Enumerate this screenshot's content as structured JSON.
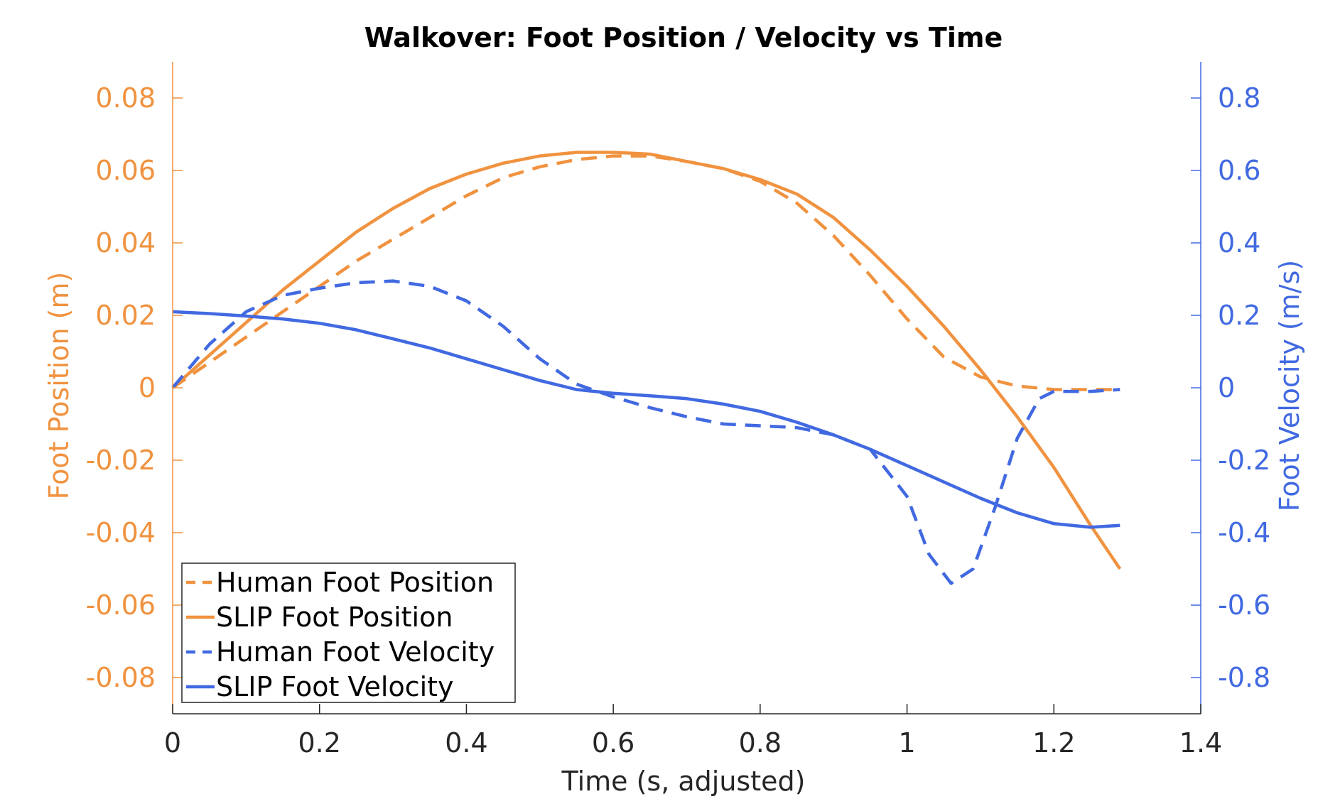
{
  "colors": {
    "position": "#F0923F",
    "velocity": "#4169E1",
    "axis_x": "#262626",
    "legend_border": "#262626",
    "background": "#FFFFFF"
  },
  "chart_data": {
    "type": "line",
    "title": "Walkover: Foot Position / Velocity vs Time",
    "xlabel": "Time (s, adjusted)",
    "ylabel_left": "Foot Position (m)",
    "ylabel_right": "Foot Velocity (m/s)",
    "xlim": [
      0,
      1.4
    ],
    "ylim_left": [
      -0.09,
      0.09
    ],
    "ylim_right": [
      -0.9,
      0.9
    ],
    "x_ticks": [
      0,
      0.2,
      0.4,
      0.6,
      0.8,
      1,
      1.2,
      1.4
    ],
    "x_tick_labels": [
      "0",
      "0.2",
      "0.4",
      "0.6",
      "0.8",
      "1",
      "1.2",
      "1.4"
    ],
    "left_ticks": [
      0.08,
      0.06,
      0.04,
      0.02,
      0,
      -0.02,
      -0.04,
      -0.06,
      -0.08
    ],
    "left_tick_labels": [
      "0.08",
      "0.06",
      "0.04",
      "0.02",
      "0",
      "-0.02",
      "-0.04",
      "-0.06",
      "-0.08"
    ],
    "right_ticks": [
      0.8,
      0.6,
      0.4,
      0.2,
      0,
      -0.2,
      -0.4,
      -0.6,
      -0.8
    ],
    "right_tick_labels": [
      "0.8",
      "0.6",
      "0.4",
      "0.2",
      "0",
      "-0.2",
      "-0.4",
      "-0.6",
      "-0.8"
    ],
    "grid": false,
    "legend_position": "lower-left",
    "series": [
      {
        "name": "Human Foot Position",
        "axis": "left",
        "style": "dashed",
        "color": "#F0923F",
        "x": [
          0,
          0.05,
          0.1,
          0.15,
          0.2,
          0.25,
          0.3,
          0.35,
          0.4,
          0.45,
          0.5,
          0.55,
          0.6,
          0.65,
          0.7,
          0.75,
          0.8,
          0.85,
          0.9,
          0.95,
          1.0,
          1.05,
          1.1,
          1.15,
          1.2,
          1.25,
          1.29
        ],
        "y": [
          0,
          0.007,
          0.014,
          0.021,
          0.028,
          0.035,
          0.041,
          0.047,
          0.053,
          0.058,
          0.061,
          0.063,
          0.064,
          0.064,
          0.0625,
          0.0605,
          0.057,
          0.051,
          0.042,
          0.031,
          0.019,
          0.0085,
          0.003,
          0.0005,
          -0.0005,
          -0.0005,
          -0.0005
        ]
      },
      {
        "name": "SLIP Foot Position",
        "axis": "left",
        "style": "solid",
        "color": "#F0923F",
        "x": [
          0,
          0.05,
          0.1,
          0.15,
          0.2,
          0.25,
          0.3,
          0.35,
          0.4,
          0.45,
          0.5,
          0.55,
          0.6,
          0.65,
          0.7,
          0.75,
          0.8,
          0.85,
          0.9,
          0.95,
          1.0,
          1.05,
          1.1,
          1.15,
          1.2,
          1.25,
          1.29
        ],
        "y": [
          0,
          0.009,
          0.018,
          0.027,
          0.035,
          0.043,
          0.0495,
          0.055,
          0.059,
          0.062,
          0.064,
          0.065,
          0.065,
          0.0645,
          0.0625,
          0.0605,
          0.0575,
          0.0535,
          0.047,
          0.038,
          0.028,
          0.017,
          0.005,
          -0.008,
          -0.022,
          -0.038,
          -0.05
        ]
      },
      {
        "name": "Human Foot Velocity",
        "axis": "right",
        "style": "dashed",
        "color": "#4169E1",
        "x": [
          0,
          0.05,
          0.1,
          0.15,
          0.2,
          0.25,
          0.3,
          0.35,
          0.4,
          0.45,
          0.5,
          0.55,
          0.6,
          0.65,
          0.7,
          0.75,
          0.8,
          0.85,
          0.9,
          0.95,
          1.0,
          1.03,
          1.06,
          1.09,
          1.12,
          1.15,
          1.18,
          1.2,
          1.25,
          1.29
        ],
        "y": [
          0,
          0.12,
          0.21,
          0.255,
          0.275,
          0.29,
          0.295,
          0.28,
          0.24,
          0.17,
          0.08,
          0.01,
          -0.025,
          -0.055,
          -0.08,
          -0.1,
          -0.105,
          -0.11,
          -0.13,
          -0.17,
          -0.3,
          -0.46,
          -0.54,
          -0.5,
          -0.33,
          -0.14,
          -0.03,
          -0.01,
          -0.01,
          -0.005
        ]
      },
      {
        "name": "SLIP Foot Velocity",
        "axis": "right",
        "style": "solid",
        "color": "#4169E1",
        "x": [
          0,
          0.05,
          0.1,
          0.15,
          0.2,
          0.25,
          0.3,
          0.35,
          0.4,
          0.45,
          0.5,
          0.55,
          0.6,
          0.65,
          0.7,
          0.75,
          0.8,
          0.85,
          0.9,
          0.95,
          1.0,
          1.05,
          1.1,
          1.15,
          1.2,
          1.25,
          1.29
        ],
        "y": [
          0.21,
          0.205,
          0.198,
          0.19,
          0.178,
          0.16,
          0.135,
          0.11,
          0.08,
          0.05,
          0.02,
          -0.005,
          -0.015,
          -0.022,
          -0.03,
          -0.045,
          -0.065,
          -0.095,
          -0.13,
          -0.17,
          -0.215,
          -0.26,
          -0.305,
          -0.345,
          -0.375,
          -0.385,
          -0.38
        ]
      }
    ]
  }
}
